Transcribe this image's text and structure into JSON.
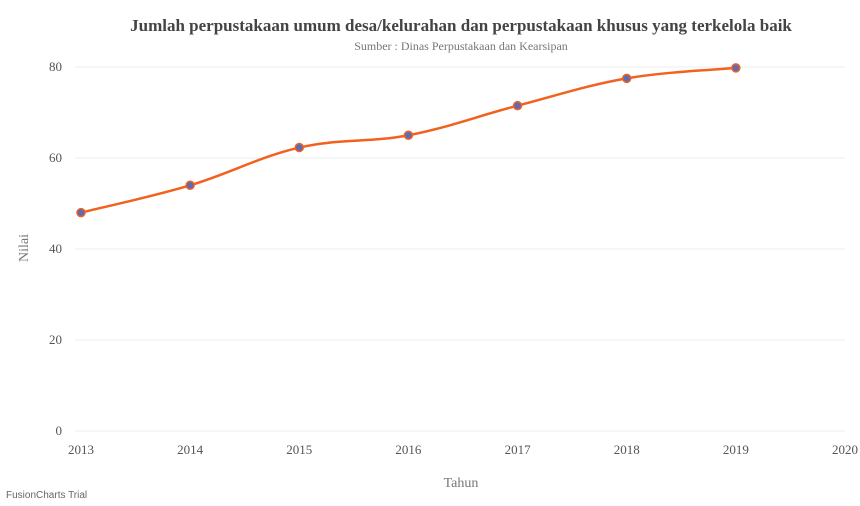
{
  "chart_data": {
    "type": "line",
    "title": "Jumlah perpustakaan umum desa/kelurahan dan perpustakaan khusus yang terkelola baik",
    "subtitle": "Sumber : Dinas Perpustakaan dan Kearsipan",
    "xlabel": "Tahun",
    "ylabel": "Nilai",
    "x": [
      2013,
      2014,
      2015,
      2016,
      2017,
      2018,
      2019
    ],
    "x_ticks": [
      2013,
      2014,
      2015,
      2016,
      2017,
      2018,
      2019,
      2020
    ],
    "values": [
      48,
      54,
      62.3,
      65,
      71.5,
      77.5,
      79.8
    ],
    "y_ticks": [
      0,
      20,
      40,
      60,
      80
    ],
    "ylim": [
      0,
      80
    ],
    "xlim": [
      2013,
      2020
    ],
    "grid": true,
    "colors": {
      "line": "#f2611d",
      "marker": "#5b6bb5"
    }
  },
  "watermark": "FusionCharts Trial"
}
